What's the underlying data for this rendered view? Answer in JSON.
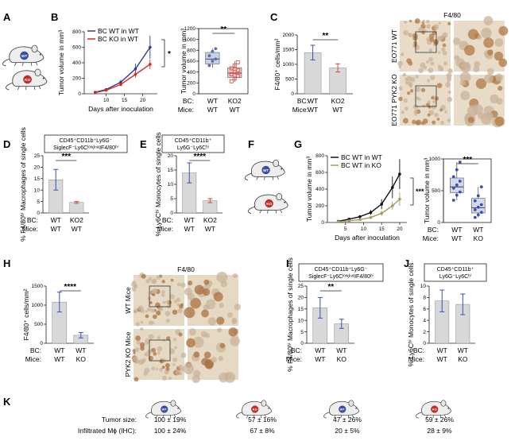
{
  "panels": {
    "A": "A",
    "B": "B",
    "C": "C",
    "D": "D",
    "E": "E",
    "F": "F",
    "G": "G",
    "H": "H",
    "I": "I",
    "J": "J",
    "K": "K"
  },
  "mouse_badges": {
    "wt": "WT",
    "ko": "KO"
  },
  "row_labels": {
    "bc": "BC:",
    "mice": "Mice:"
  },
  "group_values": {
    "wt": "WT",
    "ko": "KO",
    "ko2": "KO2"
  },
  "significance": {
    "one": "*",
    "two": "**",
    "three": "***",
    "four": "****"
  },
  "micrographs": {
    "top": {
      "title": "F4/80",
      "row_labels": [
        "EO771 WT",
        "EO771 PYK2 KO"
      ],
      "colors": {
        "stain": "#b07a45",
        "background": "#e8dcc8"
      }
    },
    "bottom": {
      "title": "F4/80",
      "row_labels": [
        "WT Mice",
        "PYK2 KO Mice"
      ],
      "colors": {
        "stain": "#a8703f",
        "background": "#e6d9c4"
      }
    }
  },
  "gate_boxes": {
    "D": [
      "CD45⁺CD11b⁺Ly6G⁻",
      "SiglecF⁻Ly6Cˡᵒʷ/ⁿᵉᵍF4/80ʰⁱ"
    ],
    "E": [
      "CD45⁺CD11b⁺",
      "Ly6G⁻Ly6Cʰⁱ"
    ],
    "I": [
      "CD45⁺CD11b⁺Ly6G⁻",
      "SiglecF⁻Ly6Cˡᵒʷ/ⁿᵉᵍF4/80ʰⁱ"
    ],
    "J": [
      "CD45⁺CD11b⁺",
      "Ly6G⁻Ly6Cʰⁱ"
    ]
  },
  "table_K": {
    "row1_label": "Tumor size:",
    "row2_label": "Infiltrated Mɸ (IHC):",
    "row1": [
      "100 ± 19%",
      "57 ± 16%",
      "47 ± 26%",
      "59 ± 26%"
    ],
    "row2": [
      "100 ± 24%",
      "67 ± 8%",
      "20 ± 5%",
      "28 ± 9%"
    ]
  },
  "chart_data": [
    {
      "id": "B-line",
      "type": "line",
      "xlabel": "Days after inoculation",
      "ylabel": "Tumor volume in mm³",
      "xlim": [
        4,
        24
      ],
      "ylim": [
        0,
        800
      ],
      "xticks": [
        10,
        15,
        20
      ],
      "yticks": [
        0,
        200,
        400,
        600,
        800
      ],
      "series": [
        {
          "name": "BC WT in WT",
          "color": "#2c3e9e",
          "x": [
            7,
            10,
            14,
            18,
            22
          ],
          "y": [
            20,
            55,
            150,
            320,
            600
          ],
          "err": [
            5,
            12,
            30,
            70,
            150
          ]
        },
        {
          "name": "BC KO in WT",
          "color": "#d42a20",
          "x": [
            7,
            10,
            14,
            18,
            22
          ],
          "y": [
            15,
            45,
            120,
            250,
            380
          ],
          "err": [
            4,
            10,
            25,
            40,
            60
          ]
        }
      ],
      "annotation": "*"
    },
    {
      "id": "B-box",
      "type": "box",
      "ylabel": "Tumor volume in mm³",
      "ylim": [
        0,
        1200
      ],
      "yticks": [
        0,
        200,
        400,
        600,
        800,
        1000,
        1200
      ],
      "categories": [
        "WT|WT",
        "KO2|WT"
      ],
      "boxes": [
        {
          "q1": 550,
          "median": 640,
          "q3": 760,
          "min": 480,
          "max": 830,
          "color": "#5c6bb0",
          "points": [
            520,
            600,
            640,
            700,
            780,
            830
          ]
        },
        {
          "q1": 300,
          "median": 380,
          "q3": 480,
          "min": 220,
          "max": 600,
          "color": "#d9534f",
          "points": [
            230,
            280,
            330,
            360,
            400,
            430,
            470,
            520,
            580
          ]
        }
      ],
      "annotation": "**"
    },
    {
      "id": "C",
      "type": "bar",
      "ylabel": "F4/80⁺ cells/mm²",
      "ylim": [
        0,
        2000
      ],
      "yticks": [
        0,
        500,
        1000,
        1500,
        2000
      ],
      "categories": [
        "WT|WT",
        "KO2|WT"
      ],
      "values": [
        1400,
        880
      ],
      "errors": [
        250,
        140
      ],
      "err_colors": [
        "#3a4fb0",
        "#d44a3a"
      ],
      "annotation": "**"
    },
    {
      "id": "D",
      "type": "bar",
      "ylabel": "% F4/80ʰⁱ Macrophages of single cells",
      "ylim": [
        0,
        25
      ],
      "yticks": [
        0,
        5,
        10,
        15,
        20,
        25
      ],
      "categories": [
        "WT|WT",
        "KO2|WT"
      ],
      "values": [
        14.5,
        4.6
      ],
      "errors": [
        4.5,
        0.4
      ],
      "err_colors": [
        "#3a4fb0",
        "#d44a3a"
      ],
      "annotation": "***"
    },
    {
      "id": "E",
      "type": "bar",
      "ylabel": "% Ly6Cʰⁱ Monocytes of single cells",
      "ylim": [
        0,
        20
      ],
      "yticks": [
        0,
        5,
        10,
        15,
        20
      ],
      "categories": [
        "WT|WT",
        "KO2|WT"
      ],
      "values": [
        14,
        4.3
      ],
      "errors": [
        3.5,
        0.7
      ],
      "err_colors": [
        "#3a4fb0",
        "#d44a3a"
      ],
      "annotation": "****"
    },
    {
      "id": "G-line",
      "type": "line",
      "xlabel": "Days after inoculation",
      "ylabel": "Tumor volume in mm³",
      "xlim": [
        0,
        22
      ],
      "ylim": [
        0,
        800
      ],
      "xticks": [
        5,
        10,
        15,
        20
      ],
      "yticks": [
        0,
        200,
        400,
        600,
        800
      ],
      "series": [
        {
          "name": "BC WT in WT",
          "color": "#111111",
          "x": [
            3,
            6,
            9,
            12,
            15,
            18,
            20
          ],
          "y": [
            15,
            40,
            70,
            120,
            220,
            420,
            580
          ],
          "err": [
            5,
            10,
            15,
            30,
            60,
            130,
            180
          ]
        },
        {
          "name": "BC WT in KO",
          "color": "#a89a5a",
          "x": [
            3,
            6,
            9,
            12,
            15,
            18,
            20
          ],
          "y": [
            10,
            20,
            35,
            60,
            110,
            200,
            280
          ],
          "err": [
            4,
            6,
            10,
            15,
            30,
            50,
            80
          ]
        }
      ],
      "annotation": "***"
    },
    {
      "id": "G-box",
      "type": "box",
      "ylabel": "Tumor volume in mm³",
      "ylim": [
        0,
        1000
      ],
      "yticks": [
        0,
        500,
        1000
      ],
      "categories": [
        "WT|WT",
        "WT|KO"
      ],
      "boxes": [
        {
          "q1": 470,
          "median": 560,
          "q3": 700,
          "min": 350,
          "max": 950,
          "color": "#3a4fb0",
          "points": [
            350,
            430,
            480,
            540,
            590,
            650,
            720,
            830,
            950
          ]
        },
        {
          "q1": 150,
          "median": 230,
          "q3": 380,
          "min": 80,
          "max": 560,
          "color": "#3a4fb0",
          "points": [
            80,
            120,
            160,
            200,
            240,
            280,
            340,
            420,
            560
          ]
        }
      ],
      "annotation": "***"
    },
    {
      "id": "H",
      "type": "bar",
      "ylabel": "F4/80⁺ cells/mm²",
      "ylim": [
        0,
        1500
      ],
      "yticks": [
        0,
        500,
        1000,
        1500
      ],
      "categories": [
        "WT|WT",
        "WT|KO"
      ],
      "values": [
        1080,
        210
      ],
      "errors": [
        260,
        70
      ],
      "err_colors": [
        "#3a4fb0",
        "#3a4fb0"
      ],
      "annotation": "****"
    },
    {
      "id": "I",
      "type": "bar",
      "ylabel": "% F4/80ʰⁱ Macrophages of single cells",
      "ylim": [
        0,
        25
      ],
      "yticks": [
        0,
        5,
        10,
        15,
        20,
        25
      ],
      "categories": [
        "WT|WT",
        "WT|KO"
      ],
      "values": [
        15.5,
        8.5
      ],
      "errors": [
        4.5,
        2
      ],
      "err_colors": [
        "#3a4fb0",
        "#3a4fb0"
      ],
      "annotation": "**"
    },
    {
      "id": "J",
      "type": "bar",
      "ylabel": "% Ly6Cʰⁱ Monocytes of single cells",
      "ylim": [
        0,
        10
      ],
      "yticks": [
        0,
        2,
        4,
        6,
        8,
        10
      ],
      "categories": [
        "WT|WT",
        "WT|KO"
      ],
      "values": [
        7.4,
        6.8
      ],
      "errors": [
        1.9,
        1.8
      ],
      "err_colors": [
        "#3a4fb0",
        "#3a4fb0"
      ],
      "annotation": ""
    }
  ]
}
